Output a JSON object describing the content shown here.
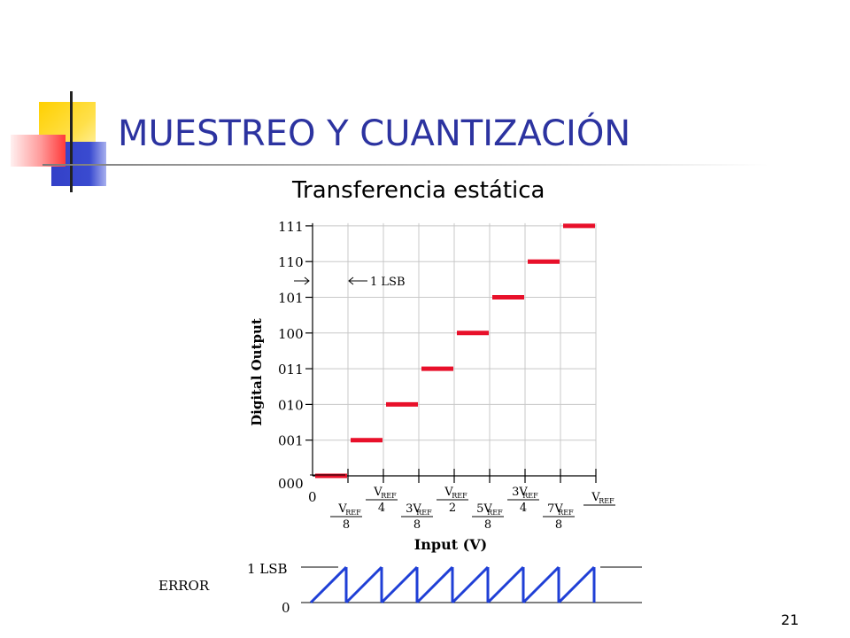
{
  "slide": {
    "title": "MUESTREO Y CUANTIZACIÓN",
    "subtitle": "Transferencia estática",
    "number": "21"
  },
  "colors": {
    "title": "#2c33a0",
    "steps": "#e8102a",
    "error": "#1f3fd6"
  },
  "chart_data": {
    "type": "line",
    "xlabel": "Input (V)",
    "ylabel": "Digital Output",
    "y_codes": [
      "000",
      "001",
      "010",
      "011",
      "100",
      "101",
      "110",
      "111"
    ],
    "x_tick_labels": [
      {
        "num": "V",
        "sub": "REF",
        "den": "8"
      },
      {
        "num": "V",
        "sub": "REF",
        "den": "4"
      },
      {
        "num": "3V",
        "sub": "REF",
        "den": "8"
      },
      {
        "num": "V",
        "sub": "REF",
        "den": "2"
      },
      {
        "num": "5V",
        "sub": "REF",
        "den": "8"
      },
      {
        "num": "3V",
        "sub": "REF",
        "den": "4"
      },
      {
        "num": "7V",
        "sub": "REF",
        "den": "8"
      }
    ],
    "x_zero_label": "0",
    "x_end_label": {
      "num": "V",
      "sub": "REF"
    },
    "steps": [
      {
        "x_start": 0,
        "x_end": 0.125,
        "code": 0
      },
      {
        "x_start": 0.125,
        "x_end": 0.25,
        "code": 1
      },
      {
        "x_start": 0.25,
        "x_end": 0.375,
        "code": 2
      },
      {
        "x_start": 0.375,
        "x_end": 0.5,
        "code": 3
      },
      {
        "x_start": 0.5,
        "x_end": 0.625,
        "code": 4
      },
      {
        "x_start": 0.625,
        "x_end": 0.75,
        "code": 5
      },
      {
        "x_start": 0.75,
        "x_end": 0.875,
        "code": 6
      },
      {
        "x_start": 0.875,
        "x_end": 1.0,
        "code": 7
      }
    ],
    "lsb_annotation": "1 LSB",
    "error_plot": {
      "label": "ERROR",
      "y_labels": [
        "0",
        "1 LSB"
      ],
      "ramps": 8
    }
  }
}
